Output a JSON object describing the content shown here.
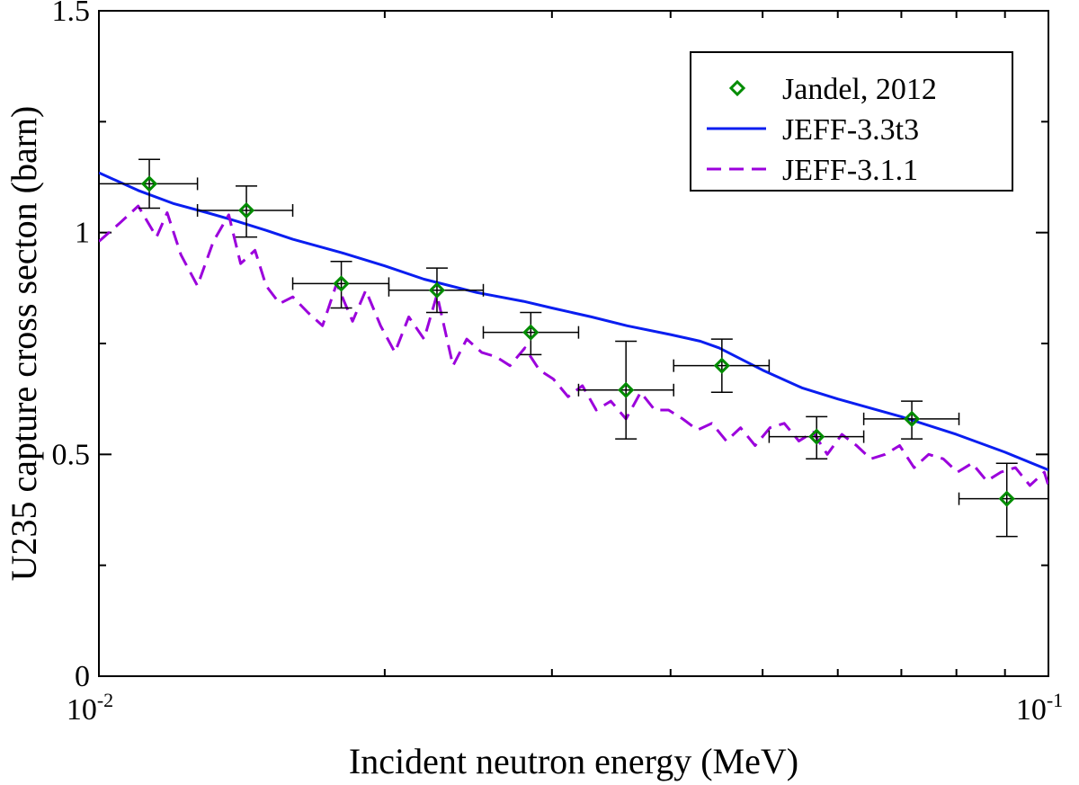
{
  "chart_data": {
    "type": "scatter",
    "xlabel": "Incident neutron energy (MeV)",
    "ylabel": "U235 capture cross secton (barn)",
    "x_scale": "log",
    "xlim": [
      0.01,
      0.1
    ],
    "ylim": [
      0,
      1.5
    ],
    "x_ticks": [
      {
        "base": "10",
        "exp": "-2"
      },
      {
        "base": "10",
        "exp": "-1"
      }
    ],
    "y_ticks": [
      "0",
      "0.5",
      "1",
      "1.5"
    ],
    "y_tick_values": [
      0,
      0.5,
      1,
      1.5
    ],
    "legend_position": "top-right",
    "grid": false,
    "series": [
      {
        "name": "Jandel, 2012",
        "kind": "points",
        "color": "#008c00",
        "marker": "diamond",
        "points": [
          {
            "x": 0.0113,
            "y": 1.11,
            "xerr": [
              0.01,
              0.0127
            ],
            "yerr": [
              1.055,
              1.165
            ]
          },
          {
            "x": 0.0143,
            "y": 1.05,
            "xerr": [
              0.0127,
              0.016
            ],
            "yerr": [
              0.99,
              1.105
            ]
          },
          {
            "x": 0.018,
            "y": 0.885,
            "xerr": [
              0.016,
              0.0202
            ],
            "yerr": [
              0.83,
              0.935
            ]
          },
          {
            "x": 0.0227,
            "y": 0.87,
            "xerr": [
              0.0202,
              0.0254
            ],
            "yerr": [
              0.82,
              0.92
            ]
          },
          {
            "x": 0.0285,
            "y": 0.775,
            "xerr": [
              0.0254,
              0.032
            ],
            "yerr": [
              0.725,
              0.82
            ]
          },
          {
            "x": 0.0359,
            "y": 0.645,
            "xerr": [
              0.032,
              0.0403
            ],
            "yerr": [
              0.535,
              0.755
            ]
          },
          {
            "x": 0.0453,
            "y": 0.7,
            "xerr": [
              0.0403,
              0.0508
            ],
            "yerr": [
              0.64,
              0.76
            ]
          },
          {
            "x": 0.057,
            "y": 0.54,
            "xerr": [
              0.0508,
              0.0639
            ],
            "yerr": [
              0.49,
              0.585
            ]
          },
          {
            "x": 0.0718,
            "y": 0.58,
            "xerr": [
              0.0639,
              0.0805
            ],
            "yerr": [
              0.535,
              0.62
            ]
          },
          {
            "x": 0.0904,
            "y": 0.4,
            "xerr": [
              0.0805,
              0.1
            ],
            "yerr": [
              0.315,
              0.48
            ]
          }
        ]
      },
      {
        "name": "JEFF-3.3t3",
        "kind": "line",
        "color": "#0a1ef0",
        "dash": "solid",
        "x": [
          0.01,
          0.011,
          0.012,
          0.013,
          0.014,
          0.015,
          0.016,
          0.018,
          0.02,
          0.022,
          0.025,
          0.028,
          0.03,
          0.033,
          0.036,
          0.04,
          0.043,
          0.045,
          0.05,
          0.055,
          0.06,
          0.07,
          0.08,
          0.09,
          0.1
        ],
        "y": [
          1.135,
          1.095,
          1.065,
          1.045,
          1.025,
          1.005,
          0.985,
          0.955,
          0.925,
          0.895,
          0.865,
          0.845,
          0.83,
          0.81,
          0.79,
          0.77,
          0.755,
          0.74,
          0.69,
          0.65,
          0.625,
          0.585,
          0.545,
          0.505,
          0.465
        ]
      },
      {
        "name": "JEFF-3.1.1",
        "kind": "line",
        "color": "#9b00dc",
        "dash": "dashed",
        "x": [
          0.01,
          0.0105,
          0.011,
          0.0115,
          0.0118,
          0.0122,
          0.0127,
          0.0132,
          0.0137,
          0.0141,
          0.0146,
          0.015,
          0.0155,
          0.016,
          0.0166,
          0.0172,
          0.0178,
          0.0185,
          0.0191,
          0.0198,
          0.0205,
          0.0212,
          0.022,
          0.0227,
          0.0236,
          0.0244,
          0.0253,
          0.0262,
          0.0271,
          0.0281,
          0.0291,
          0.0301,
          0.0312,
          0.0323,
          0.0334,
          0.0346,
          0.0359,
          0.0372,
          0.0385,
          0.0398,
          0.0412,
          0.0427,
          0.0442,
          0.0458,
          0.0474,
          0.0491,
          0.0509,
          0.0527,
          0.0546,
          0.0565,
          0.0585,
          0.0606,
          0.0628,
          0.065,
          0.0673,
          0.0697,
          0.0722,
          0.0748,
          0.0775,
          0.0802,
          0.0831,
          0.0861,
          0.0891,
          0.0923,
          0.0956,
          0.099,
          0.1
        ],
        "y": [
          0.98,
          1.02,
          1.06,
          0.99,
          1.045,
          0.95,
          0.88,
          0.98,
          1.04,
          0.93,
          0.96,
          0.88,
          0.84,
          0.855,
          0.82,
          0.79,
          0.885,
          0.8,
          0.87,
          0.79,
          0.73,
          0.81,
          0.76,
          0.86,
          0.7,
          0.76,
          0.73,
          0.72,
          0.7,
          0.74,
          0.69,
          0.67,
          0.63,
          0.655,
          0.6,
          0.62,
          0.58,
          0.64,
          0.6,
          0.6,
          0.58,
          0.555,
          0.57,
          0.53,
          0.56,
          0.52,
          0.56,
          0.57,
          0.53,
          0.55,
          0.5,
          0.545,
          0.52,
          0.49,
          0.5,
          0.52,
          0.47,
          0.5,
          0.49,
          0.46,
          0.48,
          0.44,
          0.46,
          0.47,
          0.43,
          0.46,
          0.43
        ]
      }
    ]
  }
}
